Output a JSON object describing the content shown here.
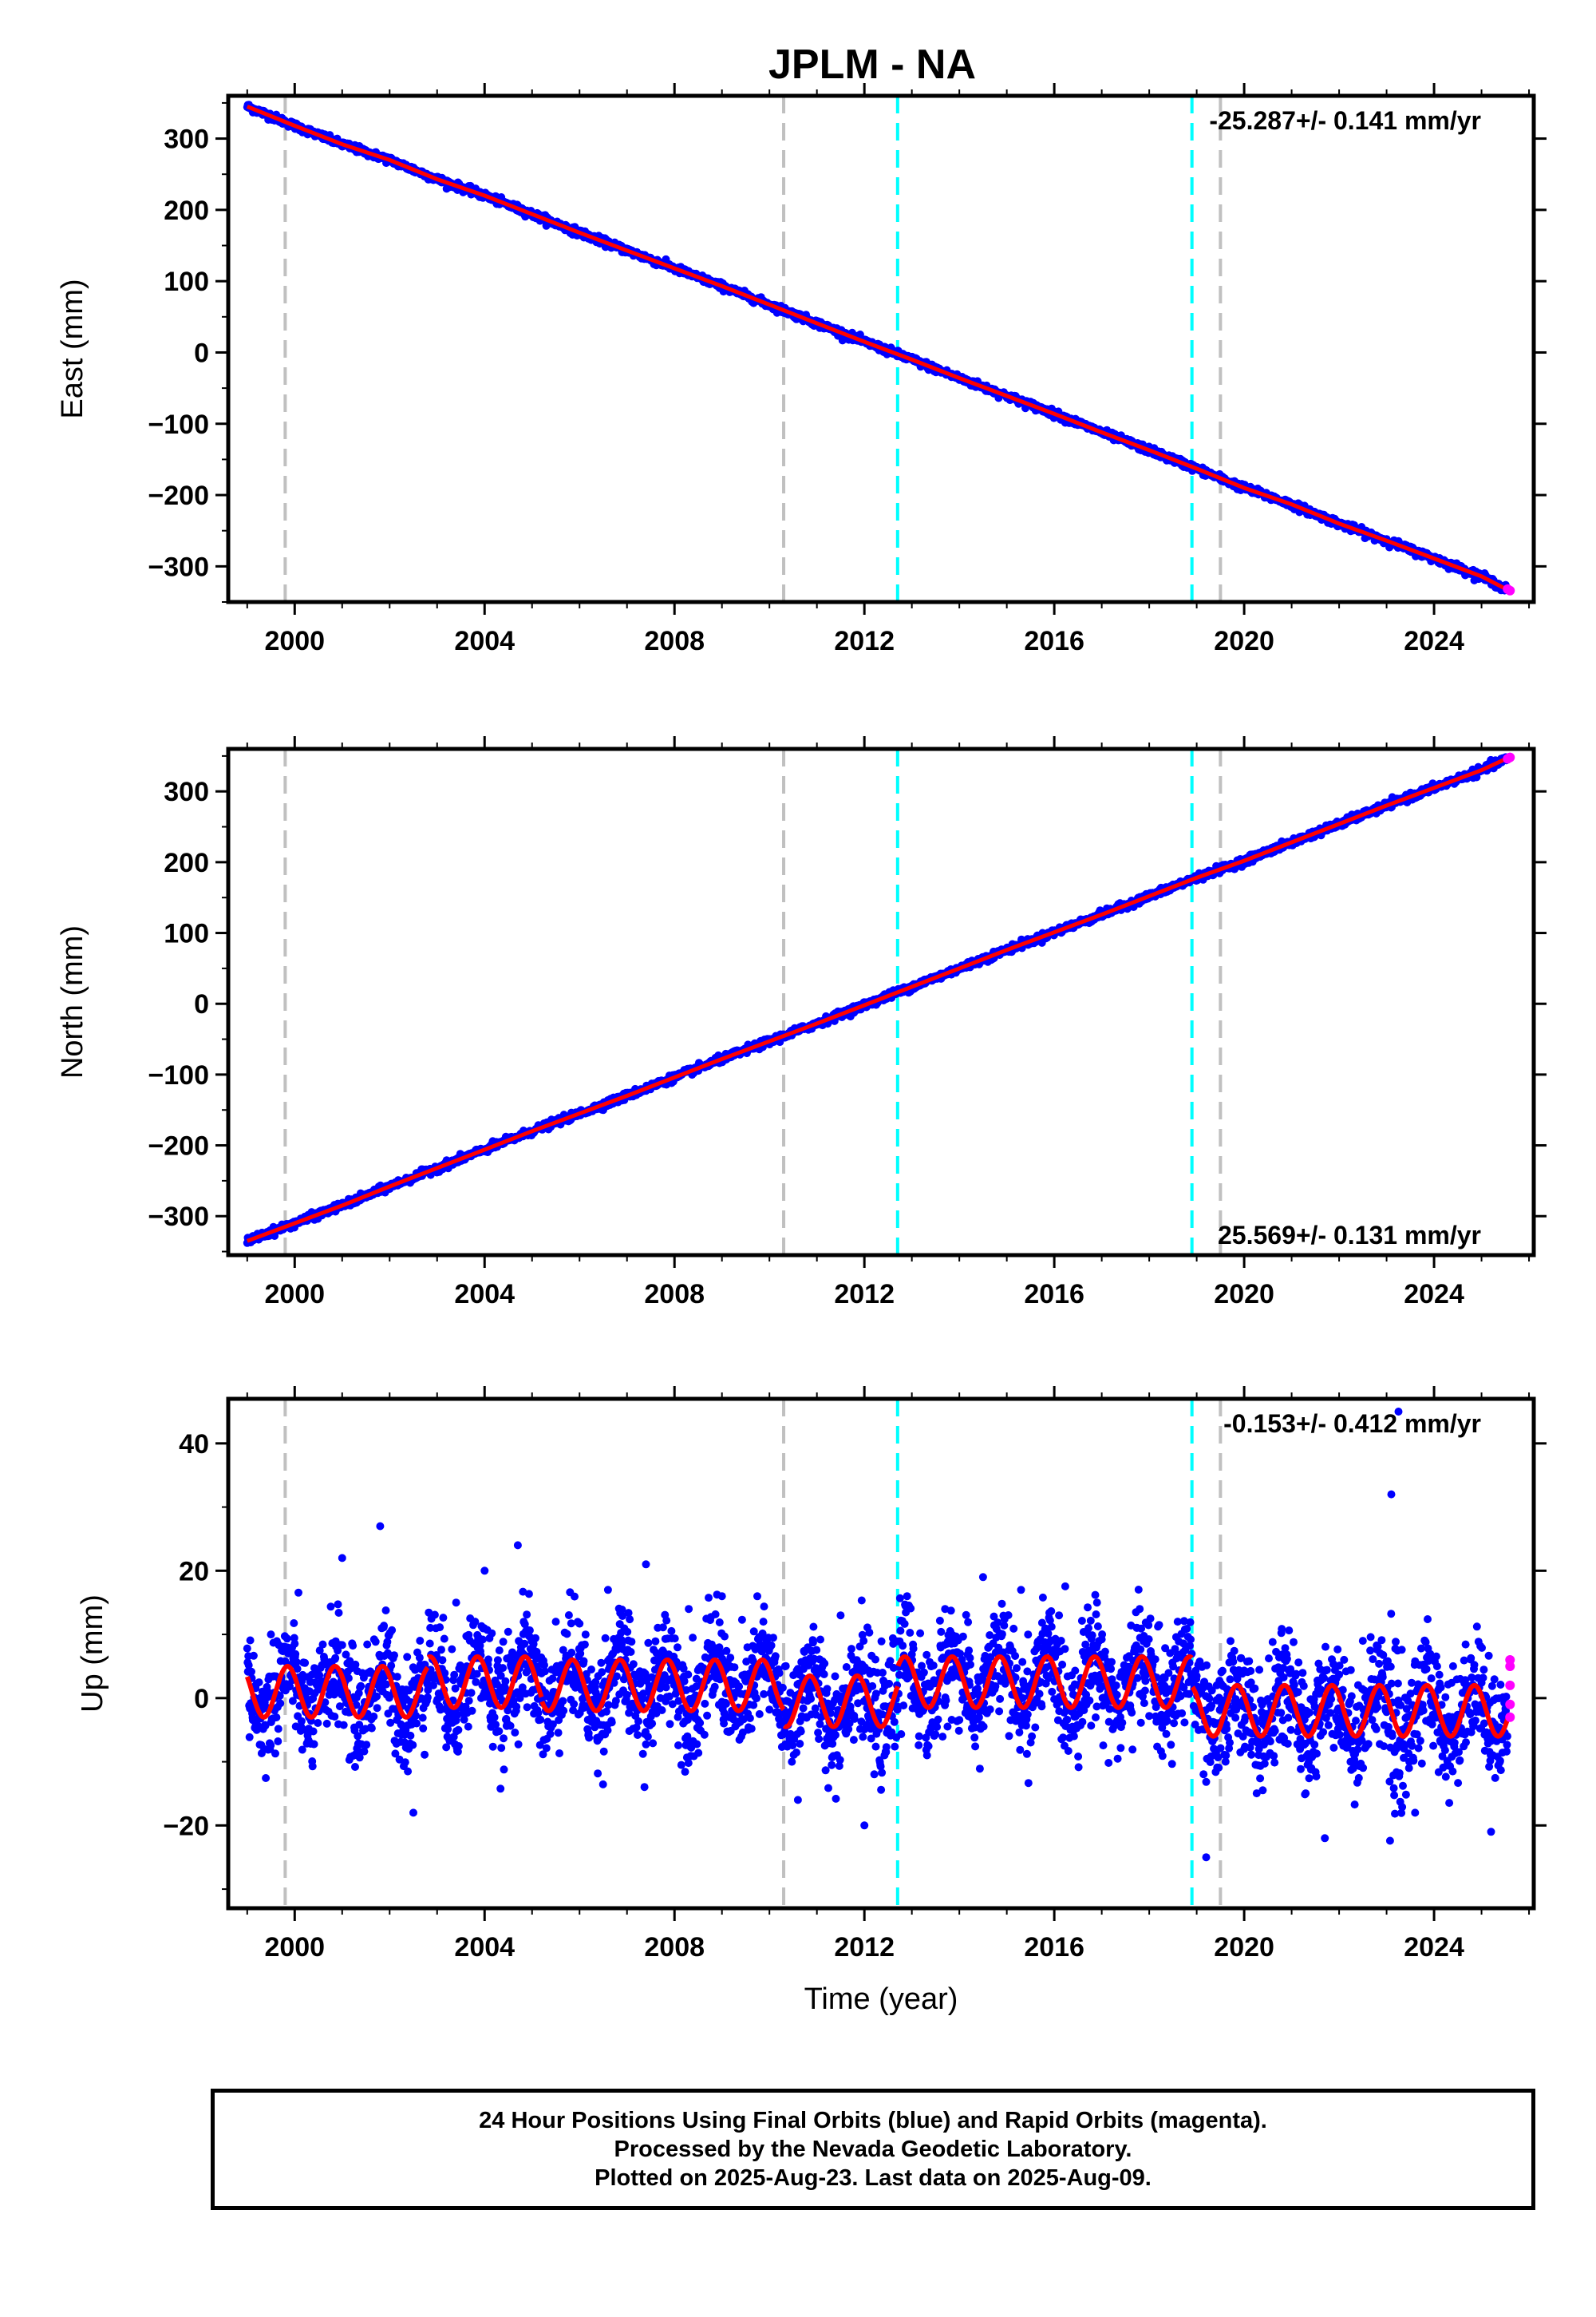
{
  "title": "JPLM - NA",
  "footer": {
    "line1": "24 Hour Positions Using Final Orbits (blue) and Rapid Orbits (magenta).",
    "line2": "Processed by the Nevada Geodetic Laboratory.",
    "line3": "Plotted on 2025-Aug-23. Last data on 2025-Aug-09."
  },
  "colors": {
    "final_points": "#0000ff",
    "rapid_points": "#ff00ff",
    "model_fit": "#ff0000",
    "equipment_change": "#c0c0c0",
    "earthquake": "#00ffff"
  },
  "chart_data": [
    {
      "type": "scatter",
      "name": "east",
      "ylabel": "East (mm)",
      "xlabel": "",
      "xlim": [
        1998.6,
        2026.1
      ],
      "ylim": [
        -350,
        360
      ],
      "yticks": [
        300,
        200,
        100,
        0,
        -100,
        -200,
        -300
      ],
      "xticks": [
        2000,
        2004,
        2008,
        2012,
        2016,
        2020,
        2024
      ],
      "grid": false,
      "rate_label": "-25.287+/- 0.141 mm/yr",
      "rate_position": "top-right",
      "series": [
        {
          "name": "Final Orbits",
          "x": [
            1999.0,
            2000.0,
            2001.0,
            2002.0,
            2003.0,
            2004.0,
            2005.0,
            2006.0,
            2007.0,
            2008.0,
            2009.0,
            2010.0,
            2011.0,
            2012.0,
            2013.0,
            2014.0,
            2015.0,
            2016.0,
            2017.0,
            2018.0,
            2019.0,
            2020.0,
            2021.0,
            2022.0,
            2023.0,
            2024.0,
            2025.0,
            2025.55
          ],
          "y": [
            345,
            318,
            292,
            270,
            243,
            220,
            194,
            168,
            143,
            118,
            93,
            67,
            41,
            15,
            -10,
            -36,
            -61,
            -86,
            -112,
            -137,
            -163,
            -190,
            -213,
            -240,
            -264,
            -289,
            -314,
            -333
          ]
        },
        {
          "name": "Rapid Orbits",
          "x": [
            2025.55,
            2025.6
          ],
          "y": [
            -332,
            -334
          ]
        }
      ],
      "equipment_changes": [
        1999.8,
        2010.3,
        2019.5
      ],
      "earthquakes": [
        2012.7,
        2018.9
      ]
    },
    {
      "type": "scatter",
      "name": "north",
      "ylabel": "North (mm)",
      "xlabel": "",
      "xlim": [
        1998.6,
        2026.1
      ],
      "ylim": [
        -355,
        360
      ],
      "yticks": [
        300,
        200,
        100,
        0,
        -100,
        -200,
        -300
      ],
      "xticks": [
        2000,
        2004,
        2008,
        2012,
        2016,
        2020,
        2024
      ],
      "grid": false,
      "rate_label": "25.569+/- 0.131 mm/yr",
      "rate_position": "bottom-right",
      "series": [
        {
          "name": "Final Orbits",
          "x": [
            1999.0,
            2000.0,
            2001.0,
            2002.0,
            2003.0,
            2004.0,
            2005.0,
            2006.0,
            2007.0,
            2008.0,
            2009.0,
            2010.0,
            2011.0,
            2012.0,
            2013.0,
            2014.0,
            2015.0,
            2016.0,
            2017.0,
            2018.0,
            2019.0,
            2020.0,
            2021.0,
            2022.0,
            2023.0,
            2024.0,
            2025.0,
            2025.55
          ],
          "y": [
            -335,
            -310,
            -285,
            -258,
            -232,
            -206,
            -180,
            -155,
            -130,
            -104,
            -78,
            -53,
            -28,
            -2,
            24,
            50,
            76,
            101,
            126,
            152,
            178,
            202,
            228,
            254,
            280,
            305,
            330,
            347
          ]
        },
        {
          "name": "Rapid Orbits",
          "x": [
            2025.55,
            2025.6
          ],
          "y": [
            346,
            348
          ]
        }
      ],
      "equipment_changes": [
        1999.8,
        2010.3,
        2019.5
      ],
      "earthquakes": [
        2012.7,
        2018.9
      ]
    },
    {
      "type": "scatter",
      "name": "up",
      "ylabel": "Up (mm)",
      "xlabel": "Time (year)",
      "xlim": [
        1998.6,
        2026.1
      ],
      "ylim": [
        -33,
        47
      ],
      "yticks": [
        40,
        20,
        0,
        -20
      ],
      "xticks": [
        2000,
        2004,
        2008,
        2012,
        2016,
        2020,
        2024
      ],
      "grid": false,
      "rate_label": "-0.153+/- 0.412 mm/yr",
      "rate_position": "top-right",
      "seasonal_model": {
        "amplitude_mm": 4,
        "phase_peak_year_fraction": 0.85,
        "offsets": [
          {
            "from": 1999.0,
            "to": 2002.8,
            "mean": 1
          },
          {
            "from": 2002.8,
            "to": 2005.2,
            "mean": 2.5
          },
          {
            "from": 2005.2,
            "to": 2010.3,
            "mean": 2
          },
          {
            "from": 2010.3,
            "to": 2012.7,
            "mean": -0.5
          },
          {
            "from": 2012.7,
            "to": 2018.9,
            "mean": 2.5
          },
          {
            "from": 2018.9,
            "to": 2025.6,
            "mean": -2
          }
        ]
      },
      "series": [
        {
          "name": "Final Orbits",
          "x": [
            1999.2,
            1999.5,
            2000.3,
            2001.0,
            2001.8,
            2002.5,
            2003.4,
            2004.0,
            2004.7,
            2005.5,
            2006.6,
            2007.4,
            2008.3,
            2009.0,
            2009.8,
            2010.6,
            2011.5,
            2012.0,
            2012.9,
            2013.7,
            2014.5,
            2015.3,
            2016.1,
            2016.9,
            2017.8,
            2018.6,
            2019.2,
            2020.0,
            2020.8,
            2021.7,
            2022.5,
            2023.1,
            2023.25,
            2023.6,
            2024.4,
            2025.2
          ],
          "y": [
            -5,
            10,
            -3,
            22,
            27,
            -18,
            15,
            20,
            24,
            12,
            17,
            21,
            14,
            16,
            8,
            -16,
            13,
            -20,
            16,
            14,
            19,
            17,
            13,
            15,
            14,
            12,
            -25,
            -8,
            -6,
            -22,
            9,
            32,
            45,
            -18,
            5,
            -21
          ]
        },
        {
          "name": "Rapid Orbits",
          "x": [
            2025.6,
            2025.6,
            2025.6,
            2025.6,
            2025.6
          ],
          "y": [
            6,
            5,
            2,
            -1,
            -3
          ]
        }
      ],
      "equipment_changes": [
        1999.8,
        2010.3,
        2019.5
      ],
      "earthquakes": [
        2012.7,
        2018.9
      ]
    }
  ]
}
